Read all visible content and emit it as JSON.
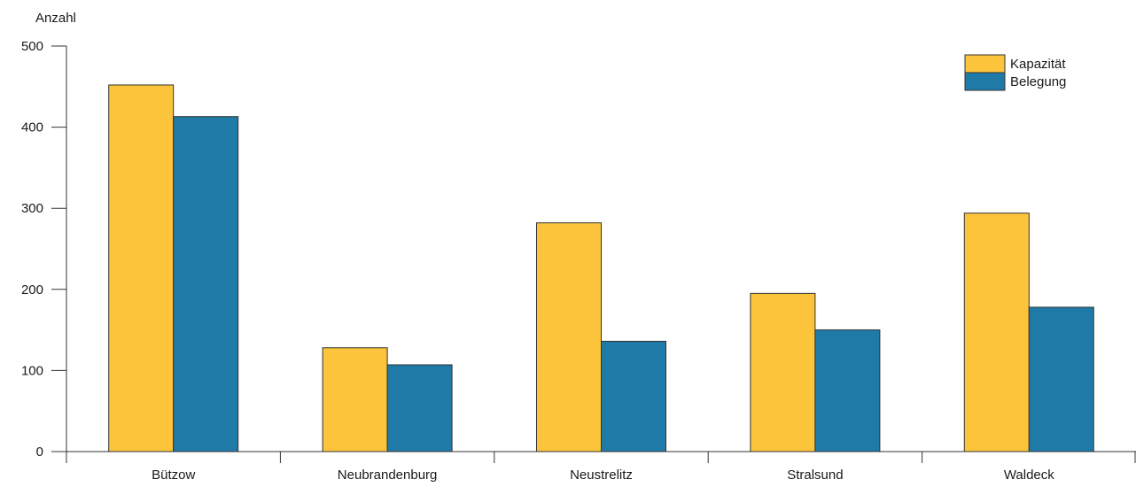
{
  "chart_data": {
    "type": "bar",
    "title": "",
    "ylabel": "Anzahl",
    "xlabel": "",
    "ylim": [
      0,
      500
    ],
    "yticks": [
      0,
      100,
      200,
      300,
      400,
      500
    ],
    "grid": false,
    "legend_position": "top-right",
    "categories": [
      "Bützow",
      "Neubrandenburg",
      "Neustrelitz",
      "Stralsund",
      "Waldeck"
    ],
    "series": [
      {
        "name": "Kapazität",
        "color": "#fbc43b",
        "values": [
          452,
          128,
          282,
          195,
          294
        ]
      },
      {
        "name": "Belegung",
        "color": "#207aa8",
        "values": [
          413,
          107,
          136,
          150,
          178
        ]
      }
    ]
  }
}
